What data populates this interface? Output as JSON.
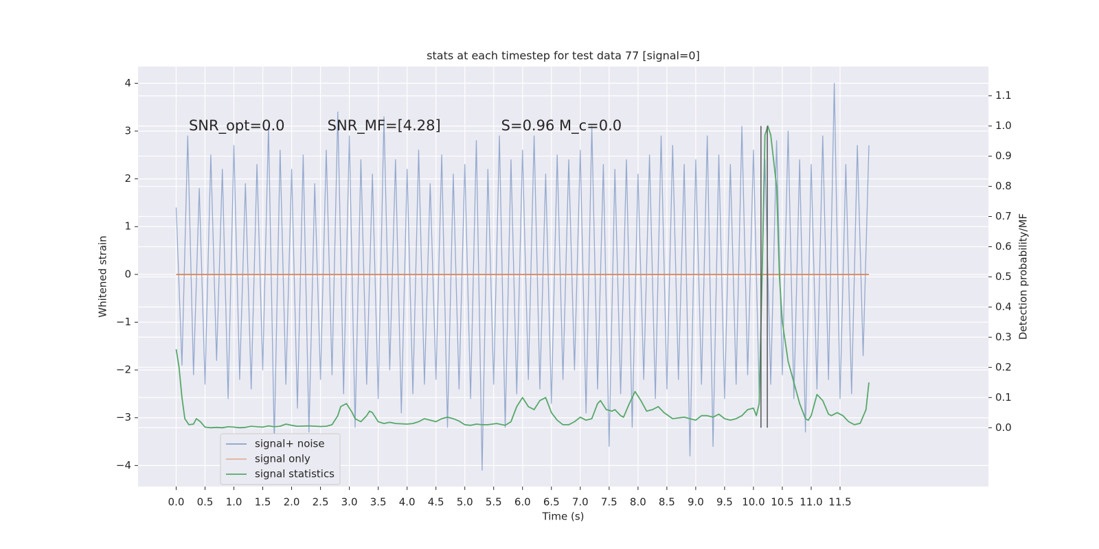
{
  "chart_data": {
    "type": "line",
    "title": "stats at each timestep for test data 77 [signal=0]",
    "x_label": "Time (s)",
    "y_label": "Whitened strain",
    "y2_label": "Detection probability/MF",
    "annotations": [
      "SNR_opt=0.0",
      "SNR_MF=[4.28]",
      "S=0.96   M_c=0.0"
    ],
    "xlim": [
      -0.66,
      14.07
    ],
    "ylim": [
      -4.44,
      4.35
    ],
    "y2lim": [
      -0.195,
      1.197
    ],
    "xticks": [
      {
        "value": 0,
        "label": "0.0"
      },
      {
        "value": 0.5,
        "label": "0.5"
      },
      {
        "value": 1,
        "label": "1.0"
      },
      {
        "value": 1.5,
        "label": "1.5"
      },
      {
        "value": 2,
        "label": "2.0"
      },
      {
        "value": 2.5,
        "label": "2.5"
      },
      {
        "value": 3,
        "label": "3.0"
      },
      {
        "value": 3.5,
        "label": "3.5"
      },
      {
        "value": 4,
        "label": "4.0"
      },
      {
        "value": 4.5,
        "label": "4.5"
      },
      {
        "value": 5,
        "label": "5.0"
      },
      {
        "value": 5.5,
        "label": "5.5"
      },
      {
        "value": 6,
        "label": "6.0"
      },
      {
        "value": 6.5,
        "label": "6.5"
      },
      {
        "value": 7,
        "label": "7.0"
      },
      {
        "value": 7.5,
        "label": "7.5"
      },
      {
        "value": 8,
        "label": "8.0"
      },
      {
        "value": 8.5,
        "label": "8.5"
      },
      {
        "value": 9,
        "label": "9.0"
      },
      {
        "value": 9.5,
        "label": "9.5"
      },
      {
        "value": 10,
        "label": "10.0"
      },
      {
        "value": 10.5,
        "label": "10.5"
      },
      {
        "value": 11,
        "label": "11.0"
      },
      {
        "value": 11.5,
        "label": "11.5"
      }
    ],
    "yticks": [
      {
        "value": -4,
        "label": "−4"
      },
      {
        "value": -3,
        "label": "−3"
      },
      {
        "value": -2,
        "label": "−2"
      },
      {
        "value": -1,
        "label": "−1"
      },
      0,
      1,
      2,
      3,
      4
    ],
    "y2ticks": [
      {
        "value": 0,
        "label": "0.0"
      },
      {
        "value": 0.1,
        "label": "0.1"
      },
      {
        "value": 0.2,
        "label": "0.2"
      },
      {
        "value": 0.3,
        "label": "0.3"
      },
      {
        "value": 0.4,
        "label": "0.4"
      },
      {
        "value": 0.5,
        "label": "0.5"
      },
      {
        "value": 0.6,
        "label": "0.6"
      },
      {
        "value": 0.7,
        "label": "0.7"
      },
      {
        "value": 0.8,
        "label": "0.8"
      },
      {
        "value": 0.9,
        "label": "0.9"
      },
      {
        "value": 1,
        "label": "1.0"
      },
      {
        "value": 1.1,
        "label": "1.1"
      }
    ],
    "grid": true,
    "legend_loc": "lower left",
    "series": [
      {
        "name": "signal+ noise",
        "color": "#4c72b0",
        "x": [
          0,
          0.1,
          0.2,
          0.3,
          0.4,
          0.5,
          0.6,
          0.7,
          0.8,
          0.9,
          1,
          1.1,
          1.2,
          1.3,
          1.4,
          1.5,
          1.6,
          1.7,
          1.8,
          1.9,
          2,
          2.1,
          2.2,
          2.3,
          2.4,
          2.5,
          2.6,
          2.7,
          2.8,
          2.9,
          3,
          3.1,
          3.2,
          3.3,
          3.4,
          3.5,
          3.6,
          3.7,
          3.8,
          3.9,
          4,
          4.1,
          4.2,
          4.3,
          4.4,
          4.5,
          4.6,
          4.7,
          4.8,
          4.9,
          5,
          5.1,
          5.2,
          5.3,
          5.4,
          5.5,
          5.6,
          5.7,
          5.8,
          5.9,
          6,
          6.1,
          6.2,
          6.3,
          6.4,
          6.5,
          6.6,
          6.7,
          6.8,
          6.9,
          7,
          7.1,
          7.2,
          7.3,
          7.4,
          7.5,
          7.6,
          7.7,
          7.8,
          7.9,
          8,
          8.1,
          8.2,
          8.3,
          8.4,
          8.5,
          8.6,
          8.7,
          8.8,
          8.9,
          9,
          9.1,
          9.2,
          9.3,
          9.4,
          9.5,
          9.6,
          9.7,
          9.8,
          9.9,
          10,
          10.1,
          10.2,
          10.3,
          10.4,
          10.5,
          10.6,
          10.7,
          10.8,
          10.9,
          11,
          11.1,
          11.2,
          11.3,
          11.4,
          11.5,
          11.6,
          11.7,
          11.8,
          11.9,
          12
        ],
        "values": [
          1.4,
          -1.9,
          2.9,
          -2.1,
          1.8,
          -2.3,
          2.5,
          -1.8,
          2.2,
          -2.6,
          2.7,
          -2.2,
          1.9,
          -2.4,
          2.3,
          -2.0,
          3.1,
          -3.5,
          2.6,
          -2.3,
          2.2,
          -2.8,
          2.5,
          -3.3,
          1.9,
          -2.2,
          2.6,
          -2.1,
          3.4,
          -2.5,
          2.9,
          -3.2,
          2.4,
          -2.3,
          2.1,
          -2.6,
          3.3,
          -2.0,
          2.4,
          -2.9,
          2.2,
          -2.5,
          2.6,
          -2.3,
          1.9,
          -2.2,
          2.5,
          -3.2,
          2.1,
          -2.4,
          2.3,
          -2.6,
          2.8,
          -4.1,
          2.2,
          -2.3,
          2.9,
          -3.2,
          2.4,
          -2.5,
          2.6,
          -2.2,
          2.9,
          -2.4,
          2.1,
          -2.7,
          2.5,
          -2.2,
          2.4,
          -2.0,
          2.6,
          -2.9,
          3.1,
          -2.4,
          2.3,
          -3.6,
          2.2,
          -2.5,
          2.4,
          -3.2,
          2.1,
          -2.2,
          2.5,
          -2.6,
          2.9,
          -2.4,
          2.7,
          -2.2,
          2.3,
          -3.8,
          2.4,
          -2.3,
          2.9,
          -3.6,
          2.5,
          -2.6,
          2.3,
          -2.3,
          3.1,
          -2.1,
          2.6,
          -2.5,
          2.4,
          -2.3,
          2.8,
          -2.1,
          3.0,
          -2.6,
          2.4,
          -3.3,
          2.3,
          -2.4,
          2.9,
          -2.2,
          4.0,
          -2.6,
          2.3,
          -2.5,
          2.7,
          -1.7,
          2.7
        ]
      },
      {
        "name": "signal only",
        "color": "#dd8452",
        "x": [
          0,
          12
        ],
        "values": [
          0,
          0
        ]
      },
      {
        "name": "signal statistics",
        "color": "#55a868",
        "axis": "y2",
        "x": [
          0,
          0.05,
          0.1,
          0.15,
          0.22,
          0.3,
          0.35,
          0.42,
          0.5,
          0.6,
          0.7,
          0.8,
          0.9,
          1,
          1.1,
          1.2,
          1.3,
          1.4,
          1.5,
          1.6,
          1.7,
          1.8,
          1.9,
          2,
          2.1,
          2.3,
          2.5,
          2.6,
          2.7,
          2.8,
          2.85,
          2.95,
          3.05,
          3.1,
          3.2,
          3.3,
          3.35,
          3.4,
          3.5,
          3.6,
          3.7,
          3.8,
          4,
          4.1,
          4.2,
          4.3,
          4.4,
          4.5,
          4.6,
          4.7,
          4.8,
          4.9,
          5,
          5.1,
          5.2,
          5.3,
          5.4,
          5.55,
          5.7,
          5.8,
          5.9,
          6,
          6.1,
          6.2,
          6.3,
          6.4,
          6.5,
          6.6,
          6.7,
          6.8,
          6.9,
          7,
          7.1,
          7.2,
          7.3,
          7.35,
          7.45,
          7.55,
          7.6,
          7.7,
          7.75,
          7.85,
          7.95,
          8.05,
          8.15,
          8.25,
          8.35,
          8.45,
          8.6,
          8.8,
          8.9,
          9,
          9.1,
          9.2,
          9.3,
          9.4,
          9.5,
          9.6,
          9.7,
          9.8,
          9.9,
          10,
          10.05,
          10.1,
          10.15,
          10.2,
          10.25,
          10.3,
          10.4,
          10.45,
          10.5,
          10.6,
          10.7,
          10.8,
          10.9,
          10.95,
          11,
          11.1,
          11.2,
          11.3,
          11.35,
          11.45,
          11.55,
          11.65,
          11.75,
          11.85,
          11.95,
          12
        ],
        "values": [
          0.26,
          0.2,
          0.1,
          0.03,
          0.01,
          0.012,
          0.03,
          0.02,
          0.002,
          0,
          0.001,
          0,
          0.003,
          0.002,
          0,
          0.001,
          0.005,
          0.003,
          0.002,
          0.006,
          0.003,
          0.005,
          0.012,
          0.008,
          0.005,
          0.006,
          0.004,
          0.005,
          0.01,
          0.04,
          0.07,
          0.08,
          0.05,
          0.03,
          0.02,
          0.04,
          0.055,
          0.05,
          0.02,
          0.014,
          0.018,
          0.014,
          0.012,
          0.014,
          0.02,
          0.03,
          0.025,
          0.02,
          0.03,
          0.035,
          0.03,
          0.022,
          0.01,
          0.008,
          0.012,
          0.01,
          0.01,
          0.014,
          0.008,
          0.02,
          0.07,
          0.1,
          0.07,
          0.06,
          0.09,
          0.1,
          0.05,
          0.025,
          0.01,
          0.01,
          0.02,
          0.035,
          0.025,
          0.03,
          0.08,
          0.09,
          0.06,
          0.055,
          0.06,
          0.04,
          0.035,
          0.08,
          0.12,
          0.09,
          0.055,
          0.06,
          0.07,
          0.05,
          0.03,
          0.035,
          0.03,
          0.025,
          0.04,
          0.04,
          0.035,
          0.045,
          0.03,
          0.025,
          0.03,
          0.04,
          0.06,
          0.065,
          0.04,
          0.08,
          0.5,
          0.97,
          1.0,
          0.97,
          0.8,
          0.5,
          0.35,
          0.22,
          0.15,
          0.08,
          0.03,
          0.025,
          0.04,
          0.11,
          0.09,
          0.045,
          0.04,
          0.05,
          0.04,
          0.02,
          0.01,
          0.015,
          0.06,
          0.15
        ]
      }
    ],
    "vlines": {
      "color": "#555555",
      "x": [
        10.13,
        10.24
      ],
      "y2": [
        0,
        1.0
      ]
    }
  }
}
